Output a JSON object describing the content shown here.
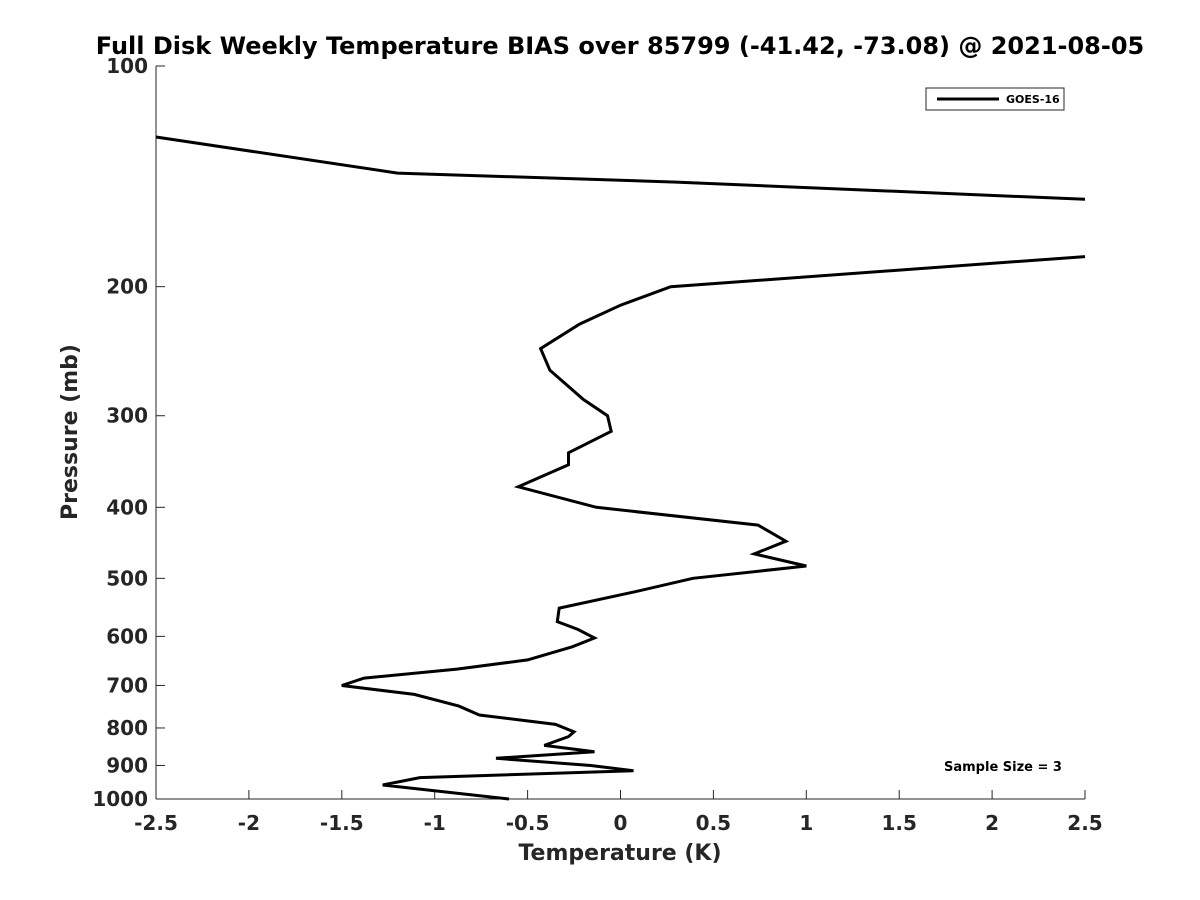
{
  "chart_data": {
    "type": "line",
    "title": "Full Disk Weekly Temperature BIAS over 85799 (-41.42, -73.08) @ 2021-08-05",
    "xlabel": "Temperature (K)",
    "ylabel": "Pressure (mb)",
    "xlim": [
      -2.5,
      2.5
    ],
    "ylim": [
      100,
      1000
    ],
    "y_scale": "log",
    "y_reversed": true,
    "grid": false,
    "legend_position": "top-right",
    "x_ticks": [
      -2.5,
      -2,
      -1.5,
      -1,
      -0.5,
      0,
      0.5,
      1,
      1.5,
      2,
      2.5
    ],
    "x_tick_labels": [
      "-2.5",
      "-2",
      "-1.5",
      "-1",
      "-0.5",
      "0",
      "0.5",
      "1",
      "1.5",
      "2",
      "2.5"
    ],
    "y_ticks": [
      100,
      200,
      300,
      400,
      500,
      600,
      700,
      800,
      900,
      1000
    ],
    "y_tick_labels": [
      "100",
      "200",
      "300",
      "400",
      "500",
      "600",
      "700",
      "800",
      "900",
      "1000"
    ],
    "annotation": "Sample Size = 3",
    "series": [
      {
        "name": "GOES-16",
        "color": "#000000",
        "points": [
          {
            "x": -2.5,
            "y": 125
          },
          {
            "x": -1.2,
            "y": 140
          },
          {
            "x": 0.3,
            "y": 144
          },
          {
            "x": 2.5,
            "y": 152
          },
          {
            "x": null,
            "y": null
          },
          {
            "x": 2.5,
            "y": 182
          },
          {
            "x": 0.27,
            "y": 200
          },
          {
            "x": 0.0,
            "y": 212
          },
          {
            "x": -0.22,
            "y": 225
          },
          {
            "x": -0.43,
            "y": 243
          },
          {
            "x": -0.38,
            "y": 260
          },
          {
            "x": -0.2,
            "y": 285
          },
          {
            "x": -0.07,
            "y": 300
          },
          {
            "x": -0.05,
            "y": 315
          },
          {
            "x": -0.28,
            "y": 337
          },
          {
            "x": -0.28,
            "y": 350
          },
          {
            "x": -0.55,
            "y": 375
          },
          {
            "x": -0.13,
            "y": 400
          },
          {
            "x": 0.74,
            "y": 423
          },
          {
            "x": 0.89,
            "y": 445
          },
          {
            "x": 0.72,
            "y": 463
          },
          {
            "x": 1.0,
            "y": 481
          },
          {
            "x": 0.39,
            "y": 500
          },
          {
            "x": 0.07,
            "y": 522
          },
          {
            "x": -0.33,
            "y": 549
          },
          {
            "x": -0.34,
            "y": 573
          },
          {
            "x": -0.23,
            "y": 587
          },
          {
            "x": -0.14,
            "y": 603
          },
          {
            "x": -0.26,
            "y": 620
          },
          {
            "x": -0.5,
            "y": 646
          },
          {
            "x": -0.88,
            "y": 665
          },
          {
            "x": -1.38,
            "y": 684
          },
          {
            "x": -1.5,
            "y": 700
          },
          {
            "x": -1.11,
            "y": 720
          },
          {
            "x": -0.87,
            "y": 747
          },
          {
            "x": -0.76,
            "y": 768
          },
          {
            "x": -0.35,
            "y": 791
          },
          {
            "x": -0.25,
            "y": 810
          },
          {
            "x": -0.28,
            "y": 822
          },
          {
            "x": -0.41,
            "y": 845
          },
          {
            "x": -0.14,
            "y": 862
          },
          {
            "x": -0.67,
            "y": 880
          },
          {
            "x": -0.16,
            "y": 900
          },
          {
            "x": 0.07,
            "y": 915
          },
          {
            "x": -1.08,
            "y": 935
          },
          {
            "x": -1.28,
            "y": 957
          },
          {
            "x": -0.6,
            "y": 1000
          }
        ]
      }
    ]
  }
}
